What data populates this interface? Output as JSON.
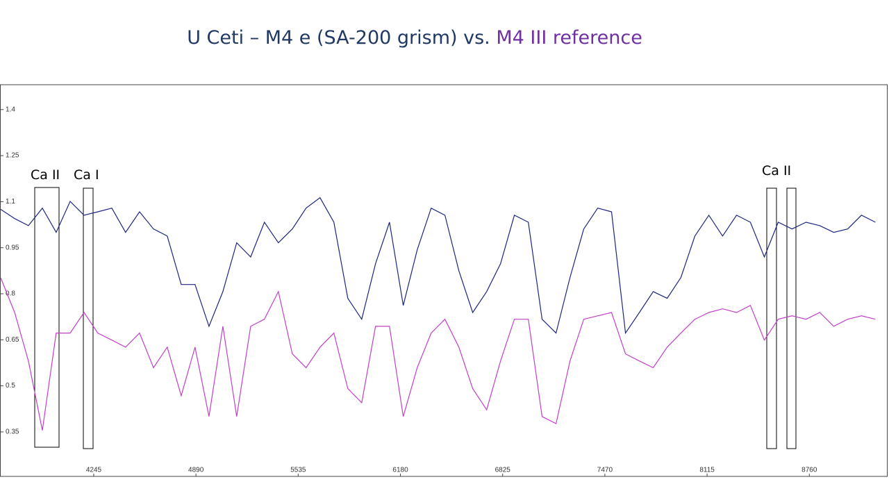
{
  "chart_data": {
    "type": "line",
    "title": [
      "U Ceti – M4 e (SA-200 grism) vs.",
      "M4 III reference"
    ],
    "title_colors": [
      "#1f3864",
      "#7030a0"
    ],
    "annotations": [
      "Ca II",
      "Ca I",
      "Ca II"
    ],
    "x": [
      3658,
      3746,
      3833,
      3921,
      4008,
      4096,
      4184,
      4271,
      4359,
      4446,
      4534,
      4622,
      4709,
      4797,
      4884,
      4972,
      5060,
      5147,
      5235,
      5322,
      5410,
      5498,
      5585,
      5673,
      5760,
      5848,
      5936,
      6023,
      6111,
      6198,
      6286,
      6374,
      6461,
      6549,
      6636,
      6724,
      6812,
      6899,
      6987,
      7074,
      7162,
      7250,
      7337,
      7425,
      7512,
      7600,
      7688,
      7775,
      7863,
      7950,
      8038,
      8126,
      8213,
      8301,
      8388,
      8476,
      8564,
      8651,
      8739,
      8826,
      8914,
      9002,
      9089,
      9177
    ],
    "series": [
      {
        "name": "U Ceti – M4 e",
        "color": "#1c2580",
        "values": [
          1.075,
          1.045,
          1.022,
          1.079,
          1.0,
          1.101,
          1.056,
          1.067,
          1.079,
          1.0,
          1.067,
          1.011,
          0.988,
          0.83,
          0.83,
          0.694,
          0.807,
          0.966,
          0.92,
          1.033,
          0.966,
          1.011,
          1.079,
          1.113,
          1.033,
          0.785,
          0.717,
          0.898,
          1.033,
          0.762,
          0.943,
          1.079,
          1.056,
          0.875,
          0.739,
          0.807,
          0.898,
          1.056,
          1.033,
          0.717,
          0.672,
          0.853,
          1.011,
          1.079,
          1.067,
          0.672,
          0.739,
          0.807,
          0.785,
          0.853,
          0.988,
          1.056,
          0.988,
          1.056,
          1.033,
          0.92,
          1.033,
          1.011,
          1.033,
          1.022,
          1.0,
          1.011,
          1.056,
          1.033
        ]
      },
      {
        "name": "M4 III reference",
        "color": "#c23fc9",
        "values": [
          0.852,
          0.739,
          0.581,
          0.355,
          0.672,
          0.672,
          0.739,
          0.672,
          0.649,
          0.626,
          0.672,
          0.559,
          0.626,
          0.468,
          0.626,
          0.4,
          0.694,
          0.4,
          0.694,
          0.717,
          0.807,
          0.604,
          0.559,
          0.626,
          0.672,
          0.491,
          0.445,
          0.694,
          0.694,
          0.4,
          0.559,
          0.672,
          0.717,
          0.626,
          0.491,
          0.422,
          0.581,
          0.717,
          0.717,
          0.4,
          0.377,
          0.581,
          0.717,
          0.728,
          0.739,
          0.604,
          0.581,
          0.559,
          0.626,
          0.672,
          0.717,
          0.739,
          0.751,
          0.739,
          0.762,
          0.649,
          0.717,
          0.728,
          0.717,
          0.739,
          0.694,
          0.717,
          0.728,
          0.717
        ]
      }
    ],
    "xlim": [
      3658,
      9254
    ],
    "xticks": [
      4245,
      4890,
      5535,
      6180,
      6825,
      7470,
      8115,
      8760
    ],
    "ylim": [
      0.205,
      1.481
    ],
    "yticks": [
      1.4,
      1.25,
      1.1,
      0.95,
      0.8,
      0.65,
      0.5,
      0.35
    ]
  }
}
